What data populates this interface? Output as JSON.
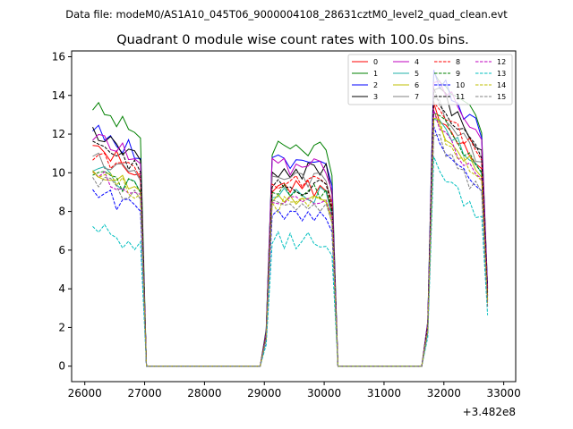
{
  "chart_data": {
    "type": "line",
    "suptitle": "Data file: modeM0/AS1A10_045T06_9000004108_28631cztM0_level2_quad_clean.evt",
    "title": "Quadrant 0 module wise count rates with 100.0s bins.",
    "xlabel": "",
    "ylabel": "",
    "x_offset_label": "+3.482e8",
    "xlim": [
      25780,
      33200
    ],
    "ylim": [
      -0.8,
      16.3
    ],
    "xticks": [
      26000,
      27000,
      28000,
      29000,
      30000,
      31000,
      32000,
      33000
    ],
    "xtick_labels": [
      "26000",
      "27000",
      "28000",
      "29000",
      "30000",
      "31000",
      "32000",
      "33000"
    ],
    "yticks": [
      0,
      2,
      4,
      6,
      8,
      10,
      12,
      14,
      16
    ],
    "ytick_labels": [
      "0",
      "2",
      "4",
      "6",
      "8",
      "10",
      "12",
      "14",
      "16"
    ],
    "grid": false,
    "legend_position": "top-right",
    "series": [
      {
        "name": "0",
        "color": "#ff0000",
        "dash": "solid",
        "base": [
          11.3,
          9.2,
          11.6
        ]
      },
      {
        "name": "1",
        "color": "#008000",
        "dash": "solid",
        "base": [
          13.4,
          11.2,
          13.7
        ]
      },
      {
        "name": "2",
        "color": "#0000ff",
        "dash": "solid",
        "base": [
          12.2,
          10.6,
          13.4
        ]
      },
      {
        "name": "3",
        "color": "#000000",
        "dash": "solid",
        "base": [
          12.1,
          10.1,
          12.7
        ]
      },
      {
        "name": "4",
        "color": "#bf00bf",
        "dash": "solid",
        "base": [
          11.9,
          10.3,
          13.3
        ]
      },
      {
        "name": "5",
        "color": "#20b2aa",
        "dash": "solid",
        "base": [
          10.2,
          8.9,
          11.3
        ]
      },
      {
        "name": "6",
        "color": "#bfbf00",
        "dash": "solid",
        "base": [
          10.3,
          8.7,
          11.1
        ]
      },
      {
        "name": "7",
        "color": "#808080",
        "dash": "solid",
        "base": [
          10.9,
          9.6,
          12.0
        ]
      },
      {
        "name": "8",
        "color": "#ff0000",
        "dash": "dashed",
        "base": [
          11.0,
          9.6,
          12.1
        ]
      },
      {
        "name": "9",
        "color": "#008000",
        "dash": "dashed",
        "base": [
          10.2,
          9.0,
          11.4
        ]
      },
      {
        "name": "10",
        "color": "#0000ff",
        "dash": "dashed",
        "base": [
          9.1,
          7.9,
          10.3
        ]
      },
      {
        "name": "11",
        "color": "#000000",
        "dash": "dashed",
        "base": [
          11.4,
          9.3,
          12.2
        ]
      },
      {
        "name": "12",
        "color": "#bf00bf",
        "dash": "dashed",
        "base": [
          10.1,
          8.8,
          11.0
        ]
      },
      {
        "name": "13",
        "color": "#00bfbf",
        "dash": "dashed",
        "base": [
          7.3,
          6.5,
          8.8
        ]
      },
      {
        "name": "14",
        "color": "#bfbf00",
        "dash": "dashed",
        "base": [
          10.1,
          8.4,
          10.9
        ]
      },
      {
        "name": "15",
        "color": "#808080",
        "dash": "dashed",
        "base": [
          9.8,
          8.4,
          10.2
        ]
      }
    ],
    "segments": [
      {
        "start": 26131,
        "end": 26931,
        "on": true
      },
      {
        "start": 27031,
        "end": 28931,
        "on": false
      },
      {
        "start": 29131,
        "end": 30131,
        "on": true
      },
      {
        "start": 30231,
        "end": 31631,
        "on": false
      },
      {
        "start": 31831,
        "end": 32631,
        "on": true
      }
    ],
    "x_range": [
      26131,
      32731
    ],
    "bin_size": 100
  }
}
